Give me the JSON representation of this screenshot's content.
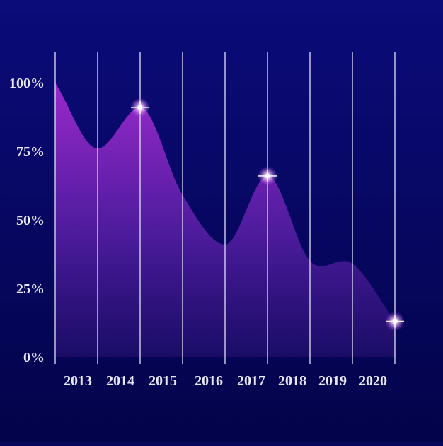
{
  "chart_data": {
    "type": "area",
    "title": "",
    "xlabel": "",
    "ylabel": "",
    "x_tick_labels": [
      "2013",
      "2014",
      "2015",
      "2016",
      "2017",
      "2018",
      "2019",
      "2020"
    ],
    "y_tick_labels": [
      "0%",
      "25%",
      "50%",
      "75%",
      "100%"
    ],
    "y_ticks": [
      0,
      25,
      50,
      75,
      100
    ],
    "ylim": [
      0,
      100
    ],
    "x_range": [
      0,
      8
    ],
    "series": [
      {
        "points": [
          {
            "x": 0.0,
            "y": 100
          },
          {
            "x": 1.0,
            "y": 76
          },
          {
            "x": 2.0,
            "y": 91
          },
          {
            "x": 3.0,
            "y": 59
          },
          {
            "x": 4.0,
            "y": 41
          },
          {
            "x": 5.0,
            "y": 66
          },
          {
            "x": 6.0,
            "y": 35
          },
          {
            "x": 7.0,
            "y": 34
          },
          {
            "x": 8.0,
            "y": 13
          }
        ]
      }
    ],
    "highlighted_points": [
      {
        "x": 2.0,
        "y": 91
      },
      {
        "x": 5.0,
        "y": 66
      },
      {
        "x": 8.0,
        "y": 13
      }
    ],
    "grid": {
      "vertical": true,
      "horizontal": false
    },
    "legend": "none",
    "colors": {
      "background_top": "#0b0b7a",
      "background_bottom": "#03034a",
      "area_top": "#a22bcf",
      "area_bottom": "#2a1275",
      "gridline": "#d8d8f0",
      "tick_label": "#e8e8f8",
      "marker_glow": "#ffffff"
    }
  }
}
